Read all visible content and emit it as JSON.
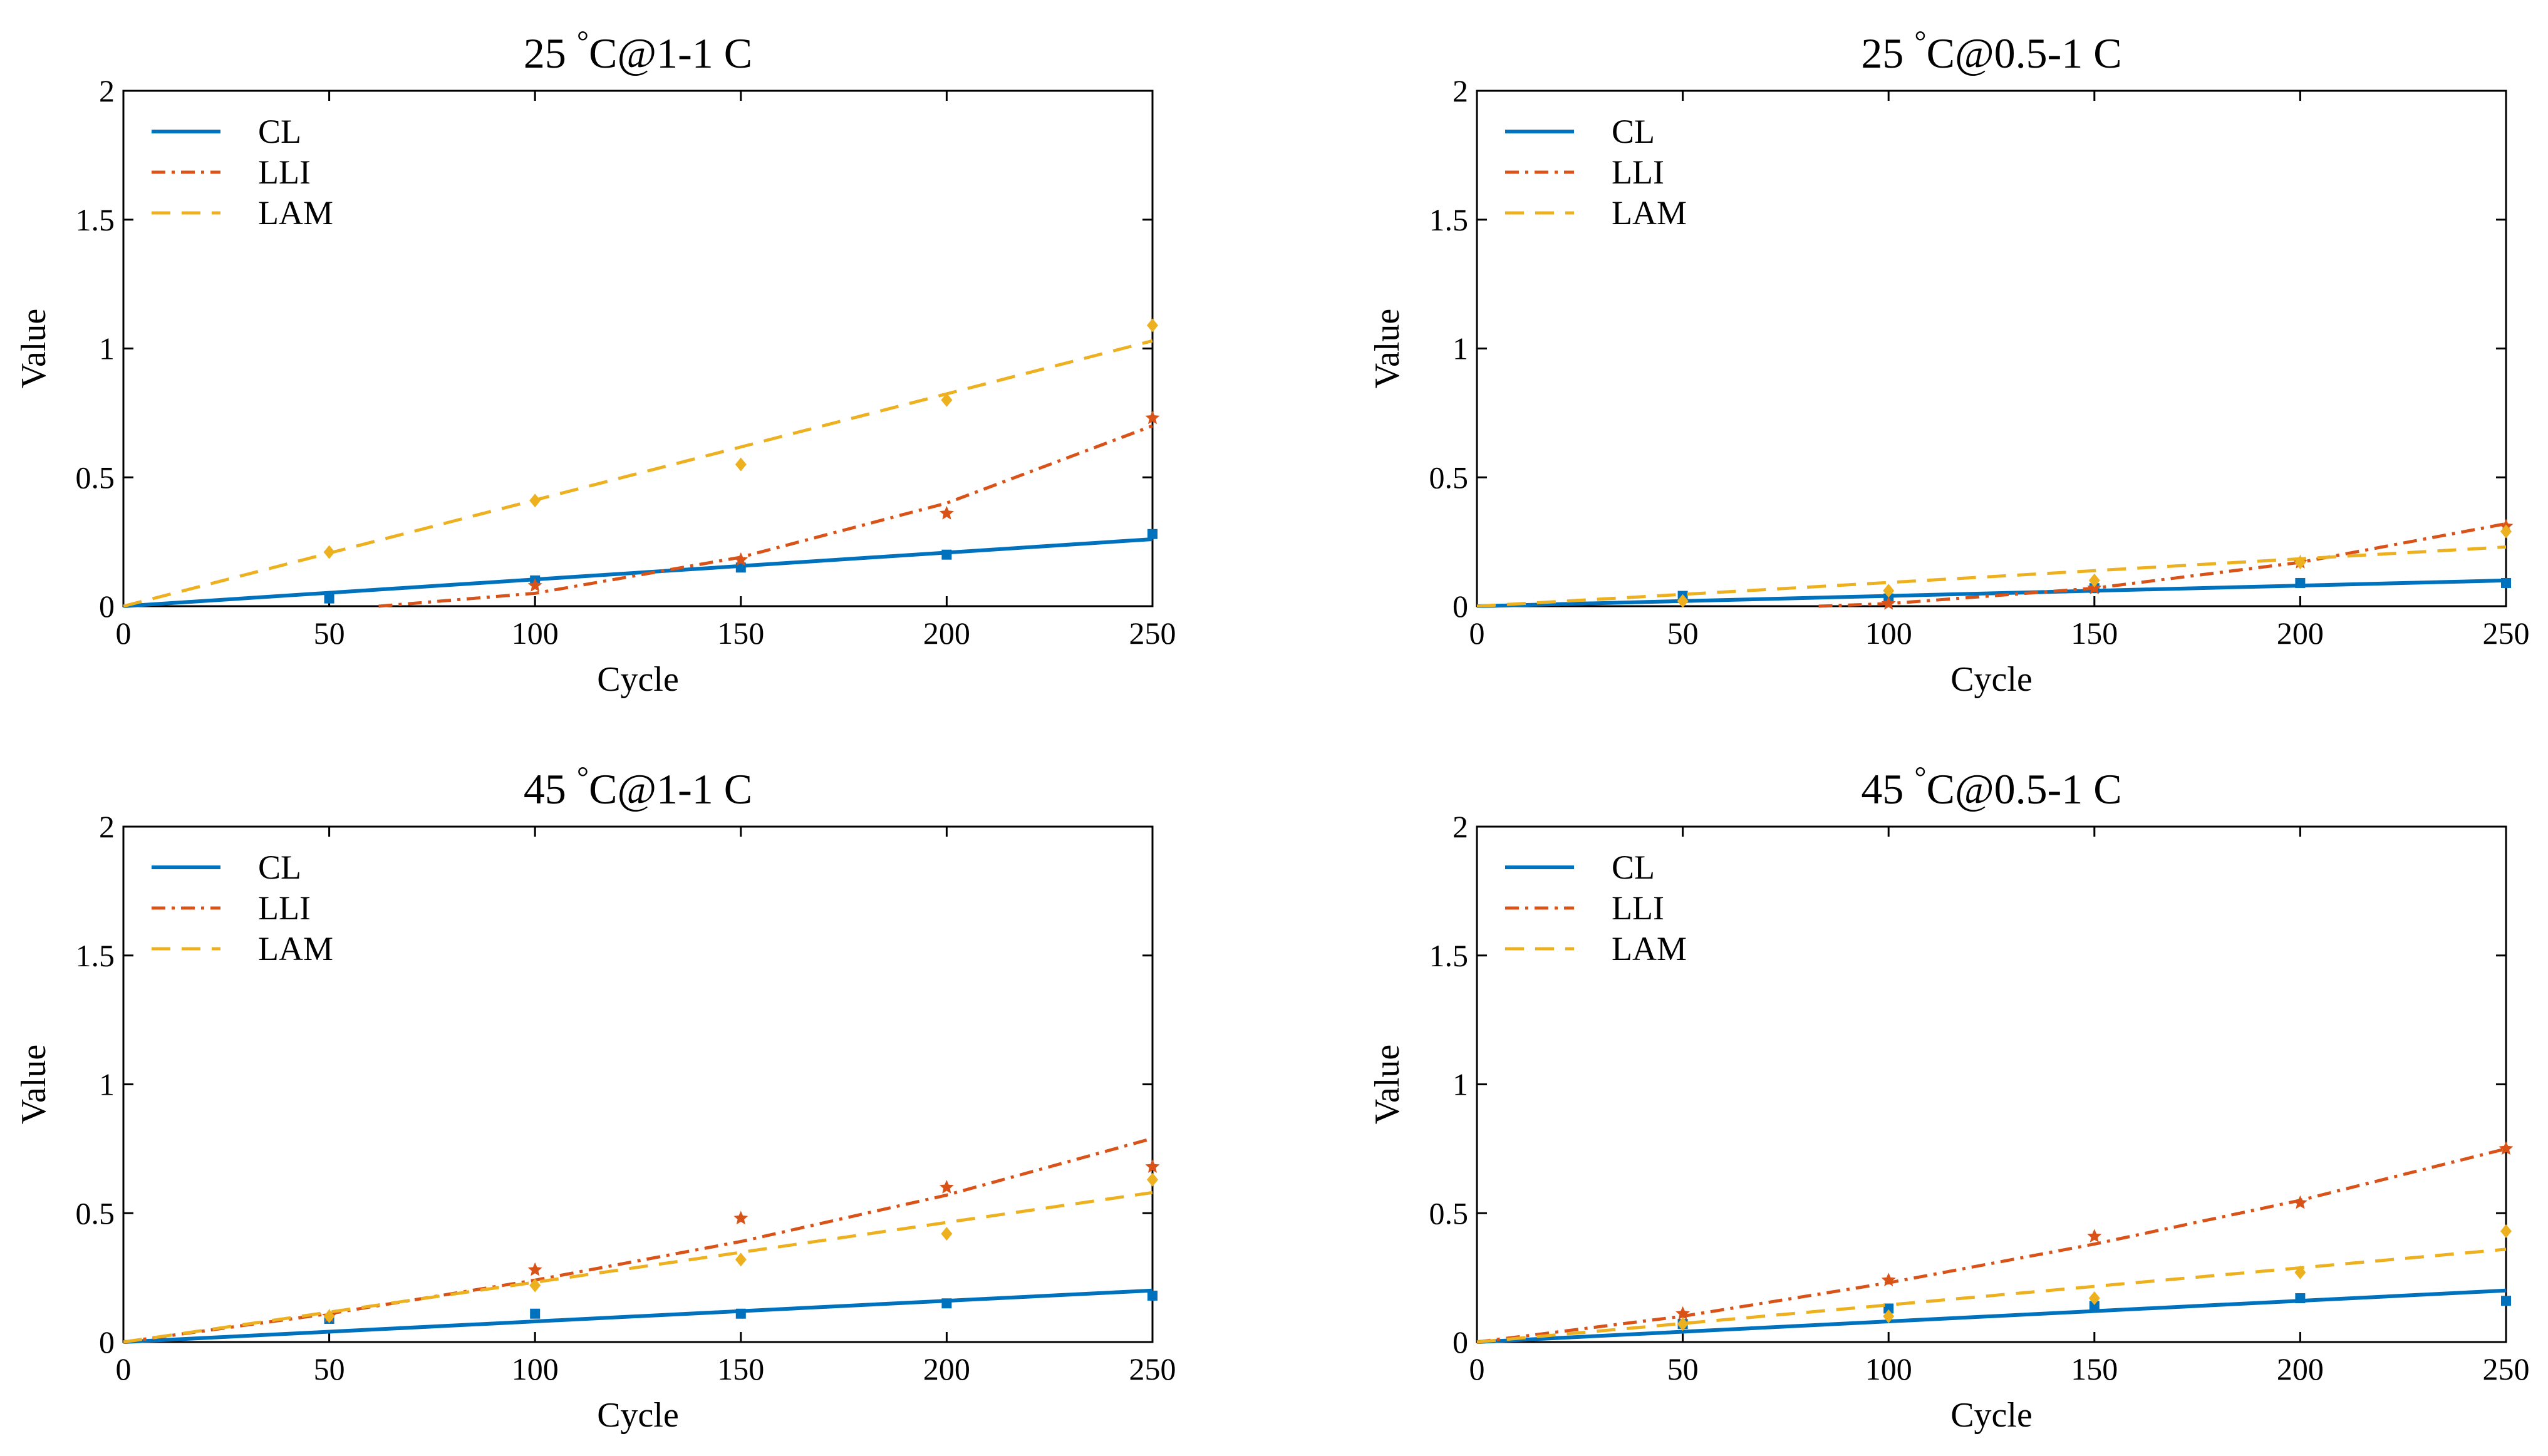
{
  "colors": {
    "CL": "#0072BD",
    "LLI": "#D95319",
    "LAM": "#EDB120"
  },
  "chart_data": [
    {
      "type": "line",
      "title_main": "25 ",
      "title_degree": "°",
      "title_tail": "C@1-1 C",
      "xlabel": "Cycle",
      "ylabel": "Value",
      "xlim": [
        0,
        250
      ],
      "ylim": [
        0,
        2
      ],
      "xticks": [
        "0",
        "50",
        "100",
        "150",
        "200",
        "250"
      ],
      "yticks": [
        "0",
        "0.5",
        "1",
        "1.5",
        "2"
      ],
      "legend_position": "top-left",
      "series": [
        {
          "name": "CL",
          "style": "solid",
          "marker": "square",
          "fit": [
            [
              0,
              0
            ],
            [
              250,
              0.26
            ]
          ],
          "points": [
            [
              50,
              0.03
            ],
            [
              100,
              0.1
            ],
            [
              150,
              0.15
            ],
            [
              200,
              0.2
            ],
            [
              250,
              0.28
            ]
          ]
        },
        {
          "name": "LLI",
          "style": "dashdot",
          "marker": "star",
          "fit": [
            [
              62,
              0
            ],
            [
              100,
              0.05
            ],
            [
              150,
              0.19
            ],
            [
              200,
              0.4
            ],
            [
              250,
              0.7
            ]
          ],
          "points": [
            [
              100,
              0.08
            ],
            [
              150,
              0.18
            ],
            [
              200,
              0.36
            ],
            [
              250,
              0.73
            ]
          ]
        },
        {
          "name": "LAM",
          "style": "dashed",
          "marker": "diamond",
          "fit": [
            [
              0,
              0
            ],
            [
              250,
              1.03
            ]
          ],
          "points": [
            [
              50,
              0.21
            ],
            [
              100,
              0.41
            ],
            [
              150,
              0.55
            ],
            [
              200,
              0.8
            ],
            [
              250,
              1.09
            ]
          ]
        }
      ]
    },
    {
      "type": "line",
      "title_main": "25 ",
      "title_degree": "°",
      "title_tail": "C@0.5-1 C",
      "xlabel": "Cycle",
      "ylabel": "Value",
      "xlim": [
        0,
        250
      ],
      "ylim": [
        0,
        2
      ],
      "xticks": [
        "0",
        "50",
        "100",
        "150",
        "200",
        "250"
      ],
      "yticks": [
        "0",
        "0.5",
        "1",
        "1.5",
        "2"
      ],
      "legend_position": "top-left",
      "series": [
        {
          "name": "CL",
          "style": "solid",
          "marker": "square",
          "fit": [
            [
              0,
              0
            ],
            [
              250,
              0.1
            ]
          ],
          "points": [
            [
              50,
              0.04
            ],
            [
              100,
              0.03
            ],
            [
              150,
              0.07
            ],
            [
              200,
              0.09
            ],
            [
              250,
              0.09
            ]
          ]
        },
        {
          "name": "LLI",
          "style": "dashdot",
          "marker": "star",
          "fit": [
            [
              83,
              0
            ],
            [
              100,
              0.01
            ],
            [
              150,
              0.07
            ],
            [
              200,
              0.17
            ],
            [
              250,
              0.32
            ]
          ],
          "points": [
            [
              100,
              0.01
            ],
            [
              150,
              0.07
            ],
            [
              200,
              0.17
            ],
            [
              250,
              0.31
            ]
          ]
        },
        {
          "name": "LAM",
          "style": "dashed",
          "marker": "diamond",
          "fit": [
            [
              0,
              0
            ],
            [
              250,
              0.23
            ]
          ],
          "points": [
            [
              50,
              0.02
            ],
            [
              100,
              0.06
            ],
            [
              150,
              0.1
            ],
            [
              200,
              0.17
            ],
            [
              250,
              0.29
            ]
          ]
        }
      ]
    },
    {
      "type": "line",
      "title_main": "45 ",
      "title_degree": "°",
      "title_tail": "C@1-1 C",
      "xlabel": "Cycle",
      "ylabel": "Value",
      "xlim": [
        0,
        250
      ],
      "ylim": [
        0,
        2
      ],
      "xticks": [
        "0",
        "50",
        "100",
        "150",
        "200",
        "250"
      ],
      "yticks": [
        "0",
        "0.5",
        "1",
        "1.5",
        "2"
      ],
      "legend_position": "top-left",
      "series": [
        {
          "name": "CL",
          "style": "solid",
          "marker": "square",
          "fit": [
            [
              0,
              0
            ],
            [
              250,
              0.2
            ]
          ],
          "points": [
            [
              50,
              0.09
            ],
            [
              100,
              0.11
            ],
            [
              150,
              0.11
            ],
            [
              200,
              0.15
            ],
            [
              250,
              0.18
            ]
          ]
        },
        {
          "name": "LLI",
          "style": "dashdot",
          "marker": "star",
          "fit": [
            [
              0,
              0
            ],
            [
              50,
              0.11
            ],
            [
              100,
              0.24
            ],
            [
              150,
              0.39
            ],
            [
              200,
              0.57
            ],
            [
              250,
              0.79
            ]
          ],
          "points": [
            [
              50,
              0.1
            ],
            [
              100,
              0.28
            ],
            [
              150,
              0.48
            ],
            [
              200,
              0.6
            ],
            [
              250,
              0.68
            ]
          ]
        },
        {
          "name": "LAM",
          "style": "dashed",
          "marker": "diamond",
          "fit": [
            [
              0,
              0
            ],
            [
              250,
              0.58
            ]
          ],
          "points": [
            [
              50,
              0.1
            ],
            [
              100,
              0.22
            ],
            [
              150,
              0.32
            ],
            [
              200,
              0.42
            ],
            [
              250,
              0.63
            ]
          ]
        }
      ]
    },
    {
      "type": "line",
      "title_main": "45 ",
      "title_degree": "°",
      "title_tail": "C@0.5-1 C",
      "xlabel": "Cycle",
      "ylabel": "Value",
      "xlim": [
        0,
        250
      ],
      "ylim": [
        0,
        2
      ],
      "xticks": [
        "0",
        "50",
        "100",
        "150",
        "200",
        "250"
      ],
      "yticks": [
        "0",
        "0.5",
        "1",
        "1.5",
        "2"
      ],
      "legend_position": "top-left",
      "series": [
        {
          "name": "CL",
          "style": "solid",
          "marker": "square",
          "fit": [
            [
              0,
              0
            ],
            [
              250,
              0.2
            ]
          ],
          "points": [
            [
              50,
              0.07
            ],
            [
              100,
              0.13
            ],
            [
              150,
              0.14
            ],
            [
              200,
              0.17
            ],
            [
              250,
              0.16
            ]
          ]
        },
        {
          "name": "LLI",
          "style": "dashdot",
          "marker": "star",
          "fit": [
            [
              0,
              0
            ],
            [
              50,
              0.1
            ],
            [
              100,
              0.23
            ],
            [
              150,
              0.38
            ],
            [
              200,
              0.55
            ],
            [
              250,
              0.75
            ]
          ],
          "points": [
            [
              50,
              0.11
            ],
            [
              100,
              0.24
            ],
            [
              150,
              0.41
            ],
            [
              200,
              0.54
            ],
            [
              250,
              0.75
            ]
          ]
        },
        {
          "name": "LAM",
          "style": "dashed",
          "marker": "diamond",
          "fit": [
            [
              0,
              0
            ],
            [
              250,
              0.36
            ]
          ],
          "points": [
            [
              50,
              0.07
            ],
            [
              100,
              0.1
            ],
            [
              150,
              0.17
            ],
            [
              200,
              0.27
            ],
            [
              250,
              0.43
            ]
          ]
        }
      ]
    }
  ]
}
